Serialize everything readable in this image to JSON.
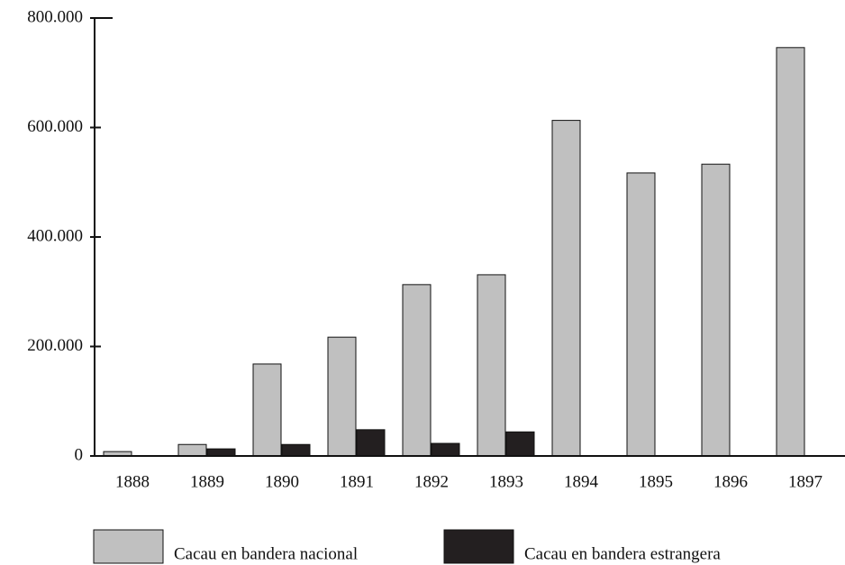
{
  "chart_data": {
    "type": "bar",
    "categories": [
      "1888",
      "1889",
      "1890",
      "1891",
      "1892",
      "1893",
      "1894",
      "1895",
      "1896",
      "1897"
    ],
    "series": [
      {
        "name": "Cacau en bandera nacional",
        "color": "#c0c0c0",
        "values": [
          8000,
          21000,
          168000,
          217000,
          313000,
          331000,
          613000,
          517000,
          533000,
          746000
        ]
      },
      {
        "name": "Cacau en bandera estrangera",
        "color": "#231f20",
        "values": [
          0,
          13000,
          21000,
          48000,
          23000,
          44000,
          0,
          0,
          0,
          0
        ]
      }
    ],
    "ylim": [
      0,
      800000
    ],
    "yticks": [
      0,
      {
        "value": 200000,
        "label": "200.000"
      },
      {
        "value": 400000,
        "label": "400.000"
      },
      {
        "value": 600000,
        "label": "600.000"
      },
      {
        "value": 800000,
        "label": "800.000"
      }
    ],
    "grid": false,
    "legend": "bottom"
  }
}
